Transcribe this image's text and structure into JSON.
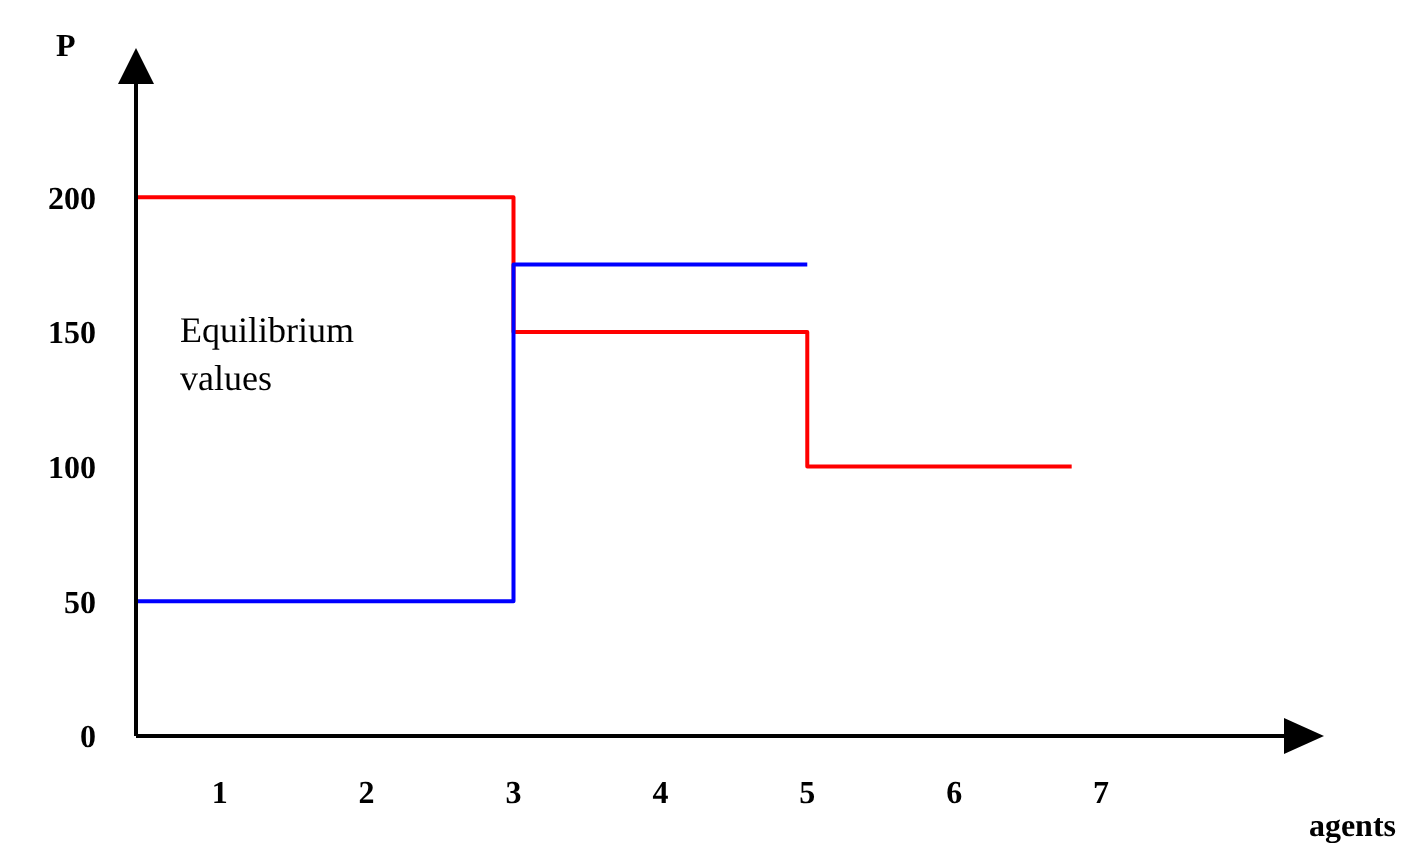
{
  "chart_data": {
    "type": "step",
    "ylabel": "P",
    "xlabel": "agents",
    "annotations": [
      "Equilibrium values"
    ],
    "xlim": [
      0.43,
      8.3
    ],
    "xticks": [
      1,
      2,
      3,
      4,
      5,
      6,
      7
    ],
    "ylim": [
      0,
      245
    ],
    "yticks": [
      0,
      50,
      100,
      150,
      200
    ],
    "grid": false,
    "legend": false,
    "marker": "none",
    "line_style": "solid",
    "series": [
      {
        "color": "#ff0000",
        "x": [
          0.43,
          3,
          5,
          6.8
        ],
        "values": [
          200,
          150,
          100,
          100
        ]
      },
      {
        "color": "#0000ff",
        "x": [
          0.43,
          3,
          5
        ],
        "values": [
          50,
          175,
          175
        ]
      }
    ]
  }
}
